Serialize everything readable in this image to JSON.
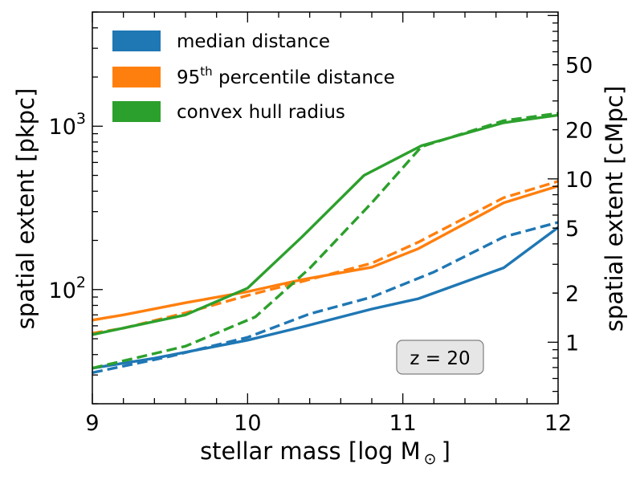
{
  "chart_data": {
    "type": "line",
    "xlabel": "stellar mass [log M",
    "xlabel_symbol": "⊙",
    "xlabel_close": "]",
    "ylabel": "spatial extent [pkpc]",
    "ylabel_right": "spatial extent [cMpc]",
    "xlim": [
      9,
      12
    ],
    "ylim": [
      20,
      5000
    ],
    "yscale": "log",
    "x_ticks": [
      "9",
      "10",
      "11",
      "12"
    ],
    "y_ticks_major": [
      {
        "value": 100,
        "base": "10",
        "exp": "2"
      },
      {
        "value": 1000,
        "base": "10",
        "exp": "3"
      }
    ],
    "right_axis": {
      "scale": "log",
      "conversion_pkpc_per_cMpc": 47.6,
      "ticks": [
        "1",
        "2",
        "5",
        "10",
        "20",
        "50"
      ]
    },
    "annotation": "z = 20",
    "legend_position": "upper-left",
    "legend": [
      {
        "label": "median distance",
        "sup": "",
        "suffix": ""
      },
      {
        "label": "95",
        "sup": "th",
        "suffix": " percentile distance"
      },
      {
        "label": "convex hull radius",
        "sup": "",
        "suffix": ""
      }
    ],
    "colors": {
      "blue": "#1f77b4",
      "orange": "#ff7f0e",
      "green": "#2ca02c",
      "axis": "#000000",
      "badge_fill": "#e6e6e6",
      "badge_stroke": "#7f7f7f"
    },
    "series": [
      {
        "color": "blue",
        "style": "solid",
        "x": [
          9.0,
          9.4,
          10.0,
          10.35,
          10.8,
          11.1,
          11.65,
          12.0
        ],
        "y": [
          33,
          38,
          49,
          59,
          76,
          88,
          136,
          240
        ]
      },
      {
        "color": "blue",
        "style": "dashed",
        "x": [
          9.0,
          9.5,
          10.0,
          10.4,
          10.8,
          11.2,
          11.65,
          12.0
        ],
        "y": [
          31,
          39,
          51,
          71,
          90,
          128,
          210,
          258
        ]
      },
      {
        "color": "orange",
        "style": "solid",
        "x": [
          9.0,
          9.2,
          9.6,
          10.0,
          10.35,
          10.8,
          11.1,
          11.65,
          12.0
        ],
        "y": [
          65,
          70,
          83,
          97,
          115,
          137,
          178,
          340,
          430
        ]
      },
      {
        "color": "orange",
        "style": "dashed",
        "x": [
          9.0,
          9.2,
          9.6,
          10.0,
          10.35,
          10.8,
          11.1,
          11.65,
          12.0
        ],
        "y": [
          54,
          58,
          72,
          92,
          112,
          145,
          195,
          365,
          460
        ]
      },
      {
        "color": "green",
        "style": "solid",
        "x": [
          9.0,
          9.6,
          10.0,
          10.35,
          10.75,
          11.12,
          11.65,
          12.0
        ],
        "y": [
          53,
          70,
          102,
          210,
          500,
          760,
          1050,
          1170
        ]
      },
      {
        "color": "green",
        "style": "dashed",
        "x": [
          9.0,
          9.6,
          10.05,
          10.4,
          10.8,
          11.12,
          11.65,
          12.0
        ],
        "y": [
          33,
          45,
          68,
          135,
          340,
          750,
          1080,
          1200
        ]
      }
    ]
  }
}
